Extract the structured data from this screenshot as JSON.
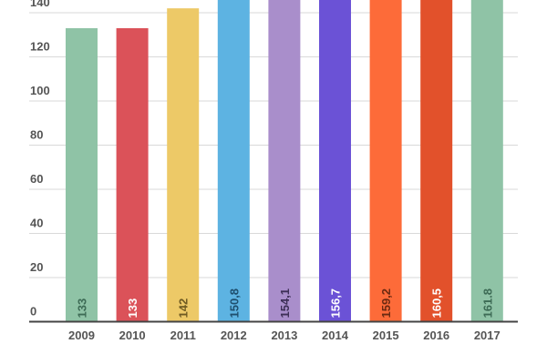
{
  "chart_data": {
    "type": "bar",
    "categories": [
      "2009",
      "2010",
      "2011",
      "2012",
      "2013",
      "2014",
      "2015",
      "2016",
      "2017"
    ],
    "values": [
      133,
      133,
      142,
      150.8,
      154.1,
      156.7,
      159.2,
      160.5,
      161.8
    ],
    "value_labels": [
      "133",
      "133",
      "142",
      "150,8",
      "154,1",
      "156,7",
      "159,2",
      "160,5",
      "161.8"
    ],
    "bar_colors": [
      "#8fc3a6",
      "#db5259",
      "#edc967",
      "#5db3e2",
      "#a98ecb",
      "#6b52d6",
      "#fd6b39",
      "#e2512b",
      "#8fc3a6"
    ],
    "value_label_colors": [
      "#3d6b55",
      "#ffffff",
      "#6e5a22",
      "#1f4f6e",
      "#3e3057",
      "#ffffff",
      "#6b2a12",
      "#ffffff",
      "#3d6b55"
    ],
    "y_ticks": [
      0,
      20,
      40,
      60,
      80,
      100,
      120,
      140
    ],
    "ylim": [
      0,
      140
    ],
    "grid": true,
    "legend": "none",
    "colors": {
      "grid": "#d9d9d9",
      "axis": "#444444",
      "tick_text": "#555555"
    }
  }
}
